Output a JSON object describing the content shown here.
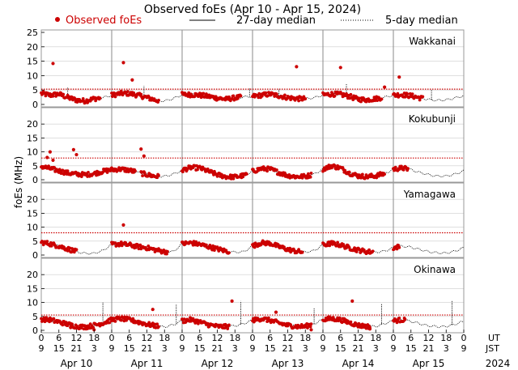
{
  "chart_data": {
    "type": "scatter",
    "title": "Observed foEs (Apr 10 - Apr 15, 2024)",
    "ylabel": "foEs (MHz)",
    "legend": {
      "observed": "Observed foEs",
      "median27": "27-day median",
      "median5": "5-day median"
    },
    "ylim": [
      0,
      25
    ],
    "yticks": [
      "0",
      "5",
      "10",
      "15",
      "20",
      "25"
    ],
    "x_range_hours": [
      0,
      144
    ],
    "x_ticks_ut": [
      "0",
      "6",
      "12",
      "18",
      "0",
      "6",
      "12",
      "18",
      "0",
      "6",
      "12",
      "18",
      "0",
      "6",
      "12",
      "18",
      "0",
      "6",
      "12",
      "18",
      "0",
      "6",
      "12",
      "18",
      "0"
    ],
    "x_ticks_jst": [
      "9",
      "15",
      "21",
      "3",
      "9",
      "15",
      "21",
      "3",
      "9",
      "15",
      "21",
      "3",
      "9",
      "15",
      "21",
      "3",
      "9",
      "15",
      "21",
      "3",
      "9",
      "15",
      "21",
      "3",
      "9"
    ],
    "ut_label": "UT",
    "jst_label": "JST",
    "days": [
      "Apr 10",
      "Apr 11",
      "Apr 12",
      "Apr 13",
      "Apr 14",
      "Apr 15"
    ],
    "year": "2024",
    "colors": {
      "observed": "#cc0000",
      "median": "#000000",
      "frame": "#999999",
      "grid": "#cccccc"
    },
    "panels": [
      {
        "station": "Wakkanai",
        "median27": 5.3,
        "observed_ranges": [
          [
            0,
            20
          ],
          [
            24,
            40
          ],
          [
            48,
            68
          ],
          [
            72,
            90
          ],
          [
            96,
            116
          ],
          [
            120,
            130
          ]
        ],
        "baseline": [
          [
            0,
            3.8
          ],
          [
            3,
            3.2
          ],
          [
            6,
            3.6
          ],
          [
            9,
            2.4
          ],
          [
            12,
            1.5
          ],
          [
            15,
            1.2
          ],
          [
            18,
            2.0
          ],
          [
            21,
            2.3
          ],
          [
            24,
            3.2
          ],
          [
            27,
            3.8
          ],
          [
            30,
            3.8
          ],
          [
            33,
            3.2
          ],
          [
            36,
            2.4
          ],
          [
            39,
            1.5
          ],
          [
            42,
            1.2
          ],
          [
            45,
            2.0
          ],
          [
            48,
            3.4
          ],
          [
            51,
            3.4
          ],
          [
            54,
            3.2
          ],
          [
            57,
            2.8
          ],
          [
            60,
            2.2
          ],
          [
            63,
            1.8
          ],
          [
            66,
            2.3
          ],
          [
            69,
            2.6
          ],
          [
            72,
            2.8
          ],
          [
            75,
            3.2
          ],
          [
            78,
            3.6
          ],
          [
            81,
            3.0
          ],
          [
            84,
            2.4
          ],
          [
            87,
            2.0
          ],
          [
            90,
            2.0
          ],
          [
            93,
            2.3
          ],
          [
            96,
            3.3
          ],
          [
            99,
            3.6
          ],
          [
            102,
            3.5
          ],
          [
            105,
            2.8
          ],
          [
            108,
            1.8
          ],
          [
            111,
            1.6
          ],
          [
            114,
            2.0
          ],
          [
            117,
            2.5
          ],
          [
            120,
            3.2
          ],
          [
            123,
            3.4
          ],
          [
            126,
            3.0
          ],
          [
            129,
            2.3
          ],
          [
            132,
            1.7
          ],
          [
            135,
            1.4
          ],
          [
            138,
            1.6
          ],
          [
            141,
            2.2
          ],
          [
            144,
            3.0
          ]
        ],
        "outliers": [
          [
            4,
            14.2
          ],
          [
            28,
            14.5
          ],
          [
            31,
            8.5
          ],
          [
            87,
            13.1
          ],
          [
            102,
            12.8
          ],
          [
            117,
            6.0
          ],
          [
            122,
            9.5
          ]
        ],
        "spikes5": [
          [
            9,
            6.0
          ],
          [
            35,
            6.5
          ],
          [
            71,
            5.5
          ],
          [
            81,
            5.5
          ],
          [
            104,
            7.0
          ],
          [
            133,
            5.0
          ]
        ]
      },
      {
        "station": "Kokubunji",
        "median27": 7.8,
        "observed_ranges": [
          [
            0,
            32
          ],
          [
            34,
            40
          ],
          [
            48,
            70
          ],
          [
            72,
            92
          ],
          [
            96,
            117
          ],
          [
            120,
            125
          ]
        ],
        "baseline": [
          [
            0,
            4.8
          ],
          [
            3,
            4.0
          ],
          [
            6,
            3.2
          ],
          [
            9,
            2.4
          ],
          [
            12,
            2.0
          ],
          [
            15,
            1.8
          ],
          [
            18,
            2.2
          ],
          [
            21,
            3.0
          ],
          [
            24,
            3.6
          ],
          [
            27,
            3.8
          ],
          [
            30,
            3.4
          ],
          [
            33,
            2.6
          ],
          [
            36,
            1.8
          ],
          [
            39,
            1.2
          ],
          [
            42,
            1.2
          ],
          [
            45,
            2.0
          ],
          [
            48,
            3.4
          ],
          [
            51,
            4.4
          ],
          [
            54,
            4.2
          ],
          [
            57,
            3.0
          ],
          [
            60,
            1.8
          ],
          [
            63,
            1.1
          ],
          [
            66,
            1.0
          ],
          [
            69,
            1.5
          ],
          [
            72,
            3.0
          ],
          [
            75,
            4.0
          ],
          [
            78,
            3.8
          ],
          [
            81,
            2.6
          ],
          [
            84,
            1.5
          ],
          [
            87,
            1.1
          ],
          [
            90,
            1.2
          ],
          [
            93,
            2.0
          ],
          [
            96,
            3.8
          ],
          [
            99,
            5.0
          ],
          [
            102,
            4.2
          ],
          [
            105,
            2.4
          ],
          [
            108,
            1.4
          ],
          [
            111,
            1.1
          ],
          [
            114,
            1.4
          ],
          [
            117,
            2.2
          ],
          [
            120,
            3.8
          ],
          [
            123,
            4.2
          ],
          [
            126,
            3.6
          ],
          [
            129,
            2.6
          ],
          [
            132,
            1.8
          ],
          [
            135,
            1.3
          ],
          [
            138,
            1.3
          ],
          [
            141,
            2.0
          ],
          [
            144,
            3.2
          ]
        ],
        "outliers": [
          [
            2,
            8.0
          ],
          [
            3,
            10.0
          ],
          [
            4,
            7.0
          ],
          [
            11,
            10.8
          ],
          [
            12,
            9.0
          ],
          [
            34,
            11.0
          ],
          [
            35,
            8.5
          ]
        ],
        "spikes5": []
      },
      {
        "station": "Yamagawa",
        "median27": 8.0,
        "observed_ranges": [
          [
            0,
            12
          ],
          [
            24,
            43
          ],
          [
            48,
            64
          ],
          [
            72,
            89
          ],
          [
            96,
            113
          ],
          [
            120,
            122
          ]
        ],
        "baseline": [
          [
            0,
            4.6
          ],
          [
            3,
            4.0
          ],
          [
            6,
            3.2
          ],
          [
            9,
            2.2
          ],
          [
            12,
            1.2
          ],
          [
            15,
            0.6
          ],
          [
            18,
            0.6
          ],
          [
            21,
            1.6
          ],
          [
            24,
            3.8
          ],
          [
            27,
            4.0
          ],
          [
            30,
            3.6
          ],
          [
            33,
            3.0
          ],
          [
            36,
            2.6
          ],
          [
            39,
            1.8
          ],
          [
            42,
            1.2
          ],
          [
            45,
            1.2
          ],
          [
            48,
            4.0
          ],
          [
            51,
            4.4
          ],
          [
            54,
            3.8
          ],
          [
            57,
            3.0
          ],
          [
            60,
            2.2
          ],
          [
            63,
            1.4
          ],
          [
            66,
            1.0
          ],
          [
            69,
            1.2
          ],
          [
            72,
            3.2
          ],
          [
            75,
            4.4
          ],
          [
            78,
            4.2
          ],
          [
            81,
            3.0
          ],
          [
            84,
            2.0
          ],
          [
            87,
            1.3
          ],
          [
            90,
            1.0
          ],
          [
            93,
            1.6
          ],
          [
            96,
            3.6
          ],
          [
            99,
            4.2
          ],
          [
            102,
            3.6
          ],
          [
            105,
            2.6
          ],
          [
            108,
            1.8
          ],
          [
            111,
            1.2
          ],
          [
            114,
            1.0
          ],
          [
            117,
            1.4
          ],
          [
            120,
            2.6
          ],
          [
            123,
            3.2
          ],
          [
            126,
            2.8
          ],
          [
            129,
            2.0
          ],
          [
            132,
            1.2
          ],
          [
            135,
            0.8
          ],
          [
            138,
            0.7
          ],
          [
            141,
            1.4
          ],
          [
            144,
            2.6
          ]
        ],
        "outliers": [
          [
            28,
            10.8
          ]
        ],
        "spikes5": []
      },
      {
        "station": "Okinawa",
        "median27": 5.5,
        "observed_ranges": [
          [
            0,
            40
          ],
          [
            48,
            64
          ],
          [
            72,
            92
          ],
          [
            96,
            112
          ],
          [
            120,
            124
          ]
        ],
        "baseline": [
          [
            0,
            4.0
          ],
          [
            3,
            3.8
          ],
          [
            6,
            3.0
          ],
          [
            9,
            2.2
          ],
          [
            12,
            1.4
          ],
          [
            15,
            1.2
          ],
          [
            18,
            1.8
          ],
          [
            21,
            2.6
          ],
          [
            24,
            3.8
          ],
          [
            27,
            4.2
          ],
          [
            30,
            3.8
          ],
          [
            33,
            3.0
          ],
          [
            36,
            2.2
          ],
          [
            39,
            1.6
          ],
          [
            42,
            1.2
          ],
          [
            45,
            2.0
          ],
          [
            48,
            3.4
          ],
          [
            51,
            3.8
          ],
          [
            54,
            3.0
          ],
          [
            57,
            2.0
          ],
          [
            60,
            1.4
          ],
          [
            63,
            1.3
          ],
          [
            66,
            1.6
          ],
          [
            69,
            2.4
          ],
          [
            72,
            3.6
          ],
          [
            75,
            4.2
          ],
          [
            78,
            3.6
          ],
          [
            81,
            2.6
          ],
          [
            84,
            1.8
          ],
          [
            87,
            1.4
          ],
          [
            90,
            1.4
          ],
          [
            93,
            2.4
          ],
          [
            96,
            3.8
          ],
          [
            99,
            4.2
          ],
          [
            102,
            3.8
          ],
          [
            105,
            2.8
          ],
          [
            108,
            1.8
          ],
          [
            111,
            1.4
          ],
          [
            114,
            1.4
          ],
          [
            117,
            2.4
          ],
          [
            120,
            3.4
          ],
          [
            123,
            3.8
          ],
          [
            126,
            3.2
          ],
          [
            129,
            2.4
          ],
          [
            132,
            1.6
          ],
          [
            135,
            1.3
          ],
          [
            138,
            1.4
          ],
          [
            141,
            2.2
          ],
          [
            144,
            3.2
          ]
        ],
        "outliers": [
          [
            10,
            1.0
          ],
          [
            18,
            0.2
          ],
          [
            38,
            7.5
          ],
          [
            65,
            10.5
          ],
          [
            80,
            6.5
          ],
          [
            92,
            0.2
          ],
          [
            106,
            10.5
          ],
          [
            112,
            0.5
          ]
        ],
        "spikes5": [
          [
            21,
            10.0
          ],
          [
            46,
            9.5
          ],
          [
            68,
            10.5
          ],
          [
            93,
            8.0
          ],
          [
            116,
            9.5
          ],
          [
            140,
            10.5
          ]
        ]
      }
    ]
  }
}
